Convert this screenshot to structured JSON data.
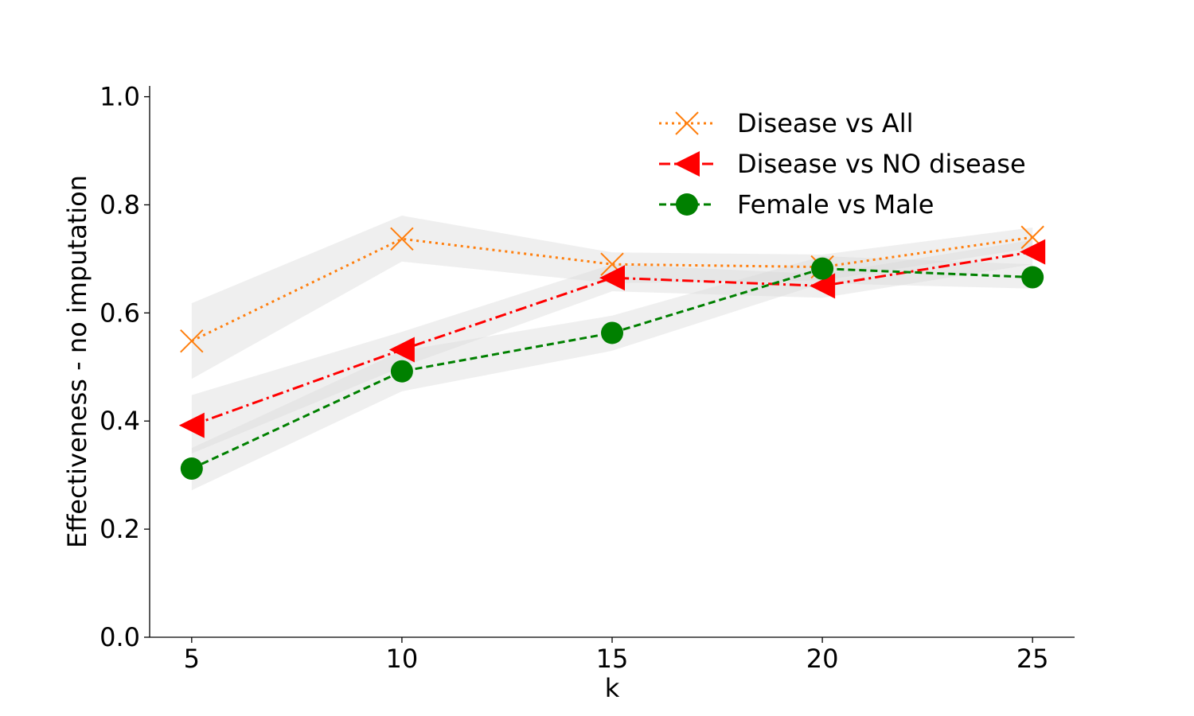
{
  "chart_data": {
    "type": "line",
    "title": "",
    "xlabel": "k",
    "ylabel": "Effectiveness - no imputation",
    "x": [
      5,
      10,
      15,
      20,
      25
    ],
    "xlim": [
      4,
      26
    ],
    "ylim": [
      0.0,
      1.02
    ],
    "xticks": [
      "5",
      "10",
      "15",
      "20",
      "25"
    ],
    "yticks": [
      "0.0",
      "0.2",
      "0.4",
      "0.6",
      "0.8",
      "1.0"
    ],
    "grid": false,
    "legend": "top-right",
    "series": [
      {
        "name": "Disease vs All",
        "values": [
          0.548,
          0.737,
          0.69,
          0.685,
          0.74
        ],
        "band_lower": [
          0.478,
          0.695,
          0.655,
          0.66,
          0.72
        ],
        "band_upper": [
          0.618,
          0.78,
          0.712,
          0.708,
          0.758
        ],
        "color": "#ff7f0e",
        "linestyle": "dotted",
        "marker": "x"
      },
      {
        "name": "Disease vs NO disease",
        "values": [
          0.392,
          0.532,
          0.665,
          0.65,
          0.713
        ],
        "band_lower": [
          0.34,
          0.5,
          0.64,
          0.628,
          0.69
        ],
        "band_upper": [
          0.448,
          0.565,
          0.69,
          0.672,
          0.735
        ],
        "color": "#ff0000",
        "linestyle": "dashdot",
        "marker": "triangle-left"
      },
      {
        "name": "Female vs Male",
        "values": [
          0.312,
          0.492,
          0.563,
          0.682,
          0.666
        ],
        "band_lower": [
          0.272,
          0.455,
          0.53,
          0.655,
          0.645
        ],
        "band_upper": [
          0.35,
          0.53,
          0.595,
          0.705,
          0.69
        ],
        "color": "#008000",
        "linestyle": "dashed",
        "marker": "circle"
      }
    ],
    "band_color": "#d9d9d9"
  }
}
